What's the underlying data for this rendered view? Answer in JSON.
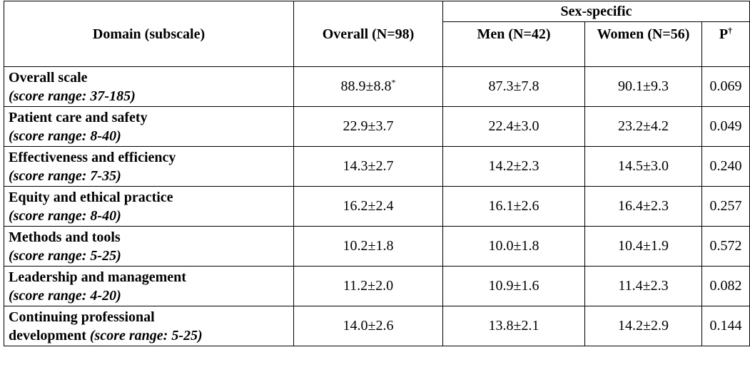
{
  "table": {
    "headers": {
      "domain": "Domain (subscale)",
      "overall": "Overall (N=98)",
      "sex_specific": "Sex-specific",
      "men": "Men (N=42)",
      "women": "Women (N=56)",
      "p": "P",
      "p_marker": "†",
      "overall_marker": "*"
    },
    "rows": [
      {
        "name": "Overall scale",
        "range": "(score range: 37-185)",
        "overall": "88.9±8.8",
        "men": "87.3±7.8",
        "women": "90.1±9.3",
        "p": "0.069"
      },
      {
        "name": "Patient care and safety",
        "range": "(score range: 8-40)",
        "overall": "22.9±3.7",
        "men": "22.4±3.0",
        "women": "23.2±4.2",
        "p": "0.049"
      },
      {
        "name": "Effectiveness and efficiency",
        "range": "(score range: 7-35)",
        "overall": "14.3±2.7",
        "men": "14.2±2.3",
        "women": "14.5±3.0",
        "p": "0.240"
      },
      {
        "name": "Equity and ethical practice",
        "range": "(score range: 8-40)",
        "overall": "16.2±2.4",
        "men": "16.1±2.6",
        "women": "16.4±2.3",
        "p": "0.257"
      },
      {
        "name": "Methods and tools",
        "range": "(score range: 5-25)",
        "overall": "10.2±1.8",
        "men": "10.0±1.8",
        "women": "10.4±1.9",
        "p": "0.572"
      },
      {
        "name": "Leadership and management",
        "range": "(score range: 4-20)",
        "overall": "11.2±2.0",
        "men": "10.9±1.6",
        "women": "11.4±2.3",
        "p": "0.082"
      },
      {
        "name": "Continuing professional",
        "name2": "development",
        "range": "(score range: 5-25)",
        "overall": "14.0±2.6",
        "men": "13.8±2.1",
        "women": "14.2±2.9",
        "p": "0.144"
      }
    ]
  }
}
